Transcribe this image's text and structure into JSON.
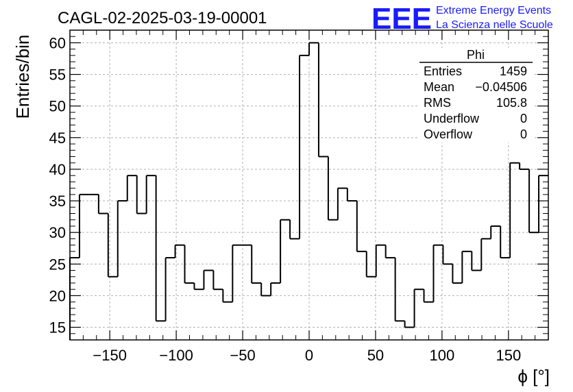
{
  "logo": {
    "mark": "EEE",
    "line1": "Extreme Energy Events",
    "line2": "La Scienza nelle Scuole",
    "color": "#1a1aff"
  },
  "stats": {
    "name": "Phi",
    "rows": [
      {
        "label": "Entries",
        "value": "1459"
      },
      {
        "label": "Mean",
        "value": "−0.04506"
      },
      {
        "label": "RMS",
        "value": "105.8"
      },
      {
        "label": "Underflow",
        "value": "0"
      },
      {
        "label": "Overflow",
        "value": "0"
      }
    ]
  },
  "chart_data": {
    "type": "histogram",
    "title": "CAGL-02-2025-03-19-00001",
    "xlabel": "ϕ [°]",
    "ylabel": "Entries/bin",
    "xlim": [
      -180,
      180
    ],
    "ylim": [
      13,
      62
    ],
    "grid": true,
    "legend": "stats box top-right",
    "bin_width": 7.2,
    "bin_starts": [
      -180,
      -172.8,
      -165.6,
      -158.4,
      -151.2,
      -144,
      -136.8,
      -129.6,
      -122.4,
      -115.2,
      -108,
      -100.8,
      -93.6,
      -86.4,
      -79.2,
      -72,
      -64.8,
      -57.6,
      -50.4,
      -43.2,
      -36,
      -28.8,
      -21.6,
      -14.4,
      -7.2,
      0,
      7.2,
      14.4,
      21.6,
      28.8,
      36,
      43.2,
      50.4,
      57.6,
      64.8,
      72,
      79.2,
      86.4,
      93.6,
      100.8,
      108,
      115.2,
      122.4,
      129.6,
      136.8,
      144,
      151.2,
      158.4,
      165.6,
      172.8
    ],
    "values": [
      26,
      36,
      36,
      33,
      23,
      35,
      39,
      33,
      39,
      16,
      26,
      28,
      22,
      21,
      24,
      21,
      19,
      28,
      28,
      22,
      20,
      22,
      32,
      29,
      58,
      60,
      42,
      32,
      37,
      35,
      27,
      23,
      28,
      26,
      16,
      15,
      21,
      19,
      28,
      25,
      22,
      27,
      24,
      29,
      31,
      26,
      41,
      40,
      30,
      39
    ],
    "x_ticks": [
      -150,
      -100,
      -50,
      0,
      50,
      100,
      150
    ],
    "x_tick_labels": [
      "−150",
      "−100",
      "−50",
      "0",
      "50",
      "100",
      "150"
    ],
    "y_ticks": [
      15,
      20,
      25,
      30,
      35,
      40,
      45,
      50,
      55,
      60
    ],
    "y_tick_labels": [
      "15",
      "20",
      "25",
      "30",
      "35",
      "40",
      "45",
      "50",
      "55",
      "60"
    ]
  }
}
